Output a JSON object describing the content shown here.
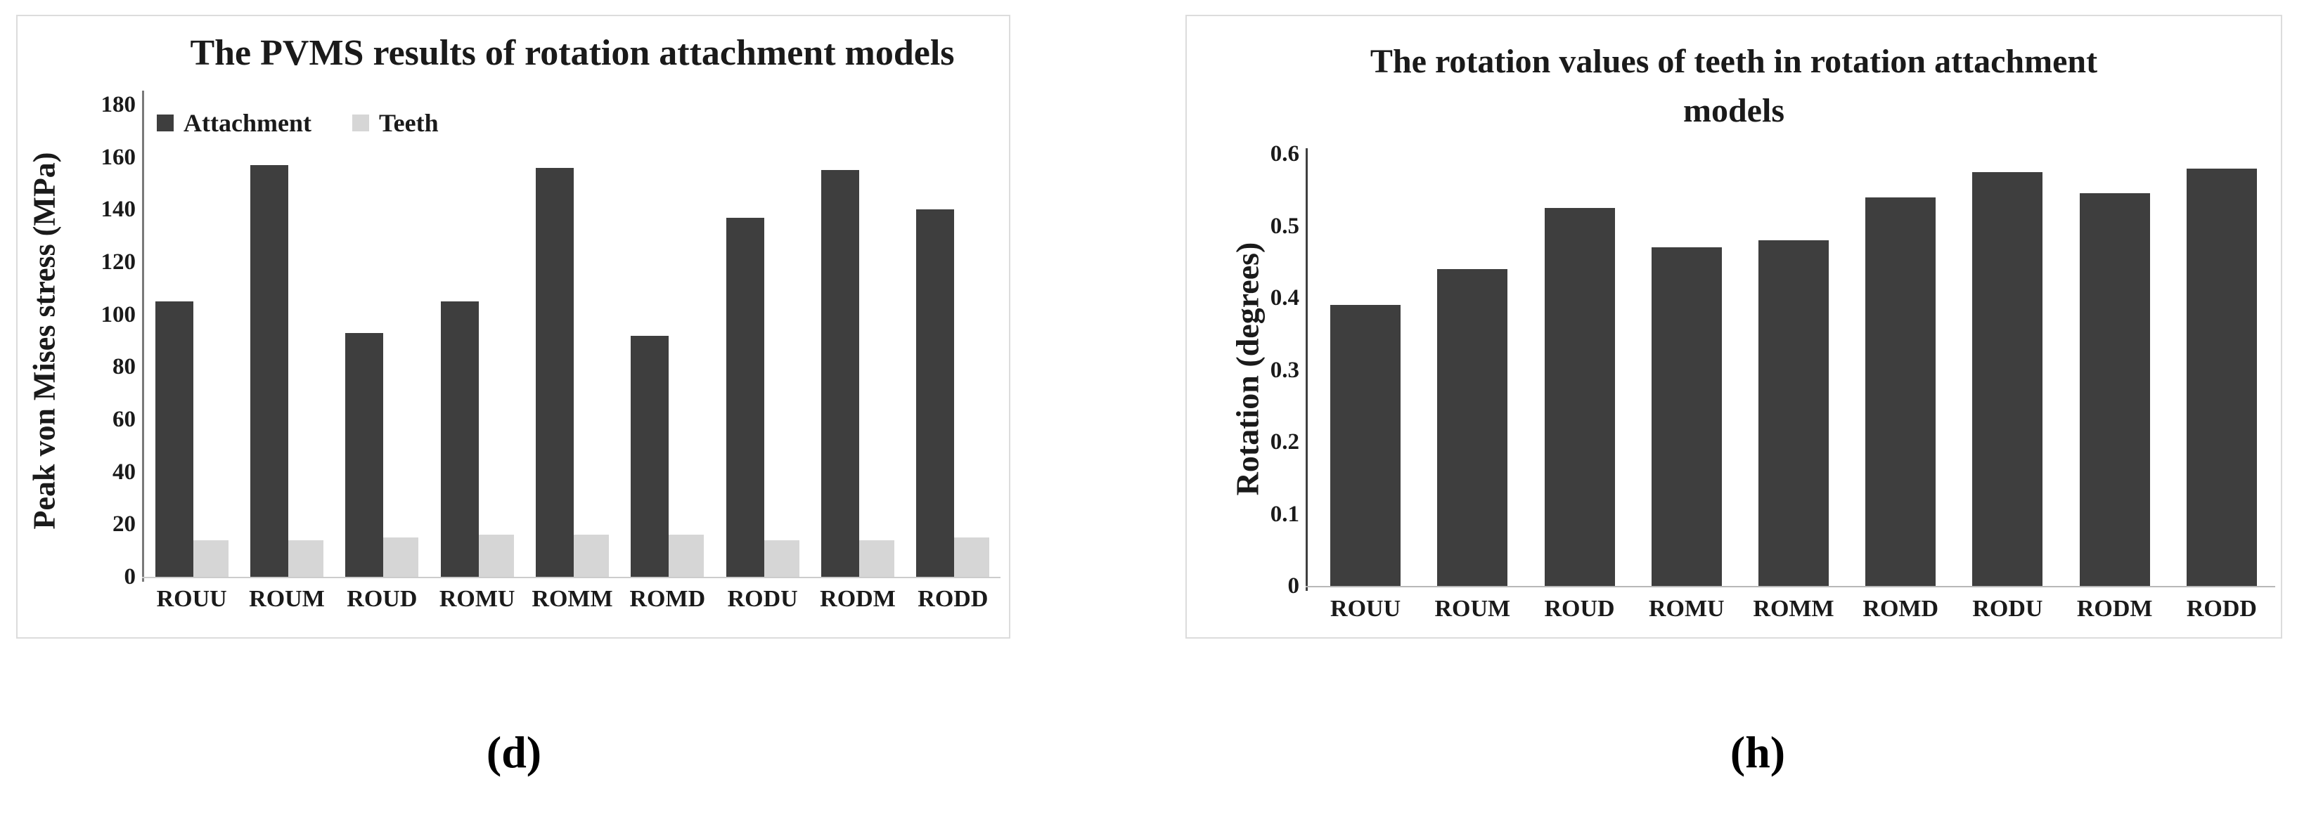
{
  "page": {
    "background": "#ffffff",
    "panel_border_color": "#dcdcdc",
    "text_color": "#1a1a1a"
  },
  "captions": {
    "left": "(d)",
    "right": "(h)"
  },
  "chart_data": [
    {
      "type": "bar",
      "id": "pvms",
      "title": "The PVMS results of rotation attachment models",
      "xlabel": "",
      "ylabel": "Peak von Mises stress (MPa)",
      "categories": [
        "ROUU",
        "ROUM",
        "ROUD",
        "ROMU",
        "ROMM",
        "ROMD",
        "RODU",
        "RODM",
        "RODD"
      ],
      "series": [
        {
          "name": "Attachment",
          "color": "#3e3e3e",
          "values": [
            105,
            157,
            93,
            105,
            156,
            92,
            137,
            155,
            140
          ]
        },
        {
          "name": "Teeth",
          "color": "#d6d6d6",
          "values": [
            14,
            14,
            15,
            16,
            16,
            16,
            14,
            14,
            15
          ]
        }
      ],
      "ylim": [
        0,
        180
      ],
      "y_step": 20,
      "y_ticks": [
        "0",
        "20",
        "40",
        "60",
        "80",
        "100",
        "120",
        "140",
        "160",
        "180"
      ],
      "legend_position": "top-left",
      "grid": false,
      "axis_color": "#7a7a7a",
      "baseline_color": "#cccccc"
    },
    {
      "type": "bar",
      "id": "rotation",
      "title": "The rotation values of teeth in rotation attachment models",
      "title_lines": [
        "The rotation values of teeth in rotation attachment",
        "models"
      ],
      "xlabel": "",
      "ylabel": "Rotation (degrees)",
      "categories": [
        "ROUU",
        "ROUM",
        "ROUD",
        "ROMU",
        "ROMM",
        "ROMD",
        "RODU",
        "RODM",
        "RODD"
      ],
      "series": [
        {
          "name": "Rotation",
          "color": "#3e3e3e",
          "values": [
            0.39,
            0.44,
            0.525,
            0.47,
            0.48,
            0.54,
            0.575,
            0.545,
            0.58
          ]
        }
      ],
      "ylim": [
        0,
        0.6
      ],
      "y_step": 0.1,
      "y_ticks": [
        "0",
        "0.1",
        "0.2",
        "0.3",
        "0.4",
        "0.5",
        "0.6"
      ],
      "legend_position": "none",
      "grid": false,
      "axis_color": "#404040",
      "baseline_color": "#b8b8b8"
    }
  ]
}
